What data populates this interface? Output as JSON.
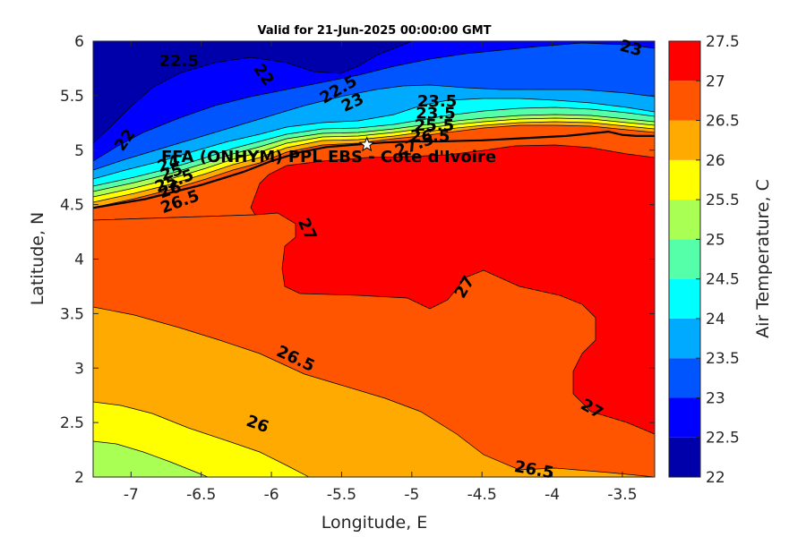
{
  "chart_data": {
    "type": "heatmap",
    "subtype": "filled-contour",
    "title": "Valid for 21-Jun-2025 00:00:00 GMT",
    "xlabel": "Longitude, E",
    "ylabel": "Latitude, N",
    "xlim": [
      -7.27,
      -3.27
    ],
    "ylim": [
      2,
      6
    ],
    "xticks": [
      -7,
      -6.5,
      -6,
      -5.5,
      -5,
      -4.5,
      -4,
      -3.5
    ],
    "yticks": [
      2,
      2.5,
      3,
      3.5,
      4,
      4.5,
      5,
      5.5,
      6
    ],
    "grid": false,
    "colorbar": {
      "label": "Air Temperature, C",
      "levels": [
        22,
        22.5,
        23,
        23.5,
        24,
        24.5,
        25,
        25.5,
        26,
        26.5,
        27,
        27.5
      ],
      "colors": [
        "#0000aa",
        "#0000ff",
        "#0055ff",
        "#00aaff",
        "#00ffff",
        "#55ffaa",
        "#aaff55",
        "#ffff00",
        "#ffaa00",
        "#ff5500",
        "#ff0000",
        "#aa0000"
      ],
      "tick_labels": [
        "22",
        "22.5",
        "23",
        "23.5",
        "24",
        "24.5",
        "25",
        "25.5",
        "26",
        "26.5",
        "27",
        "27.5"
      ]
    },
    "contour_labels": [
      {
        "text": "22.5",
        "x": -6.66,
        "y": 5.81,
        "rotate": 0
      },
      {
        "text": "22",
        "x": -6.06,
        "y": 5.69,
        "rotate": 55
      },
      {
        "text": "22",
        "x": -7.04,
        "y": 5.09,
        "rotate": -55
      },
      {
        "text": "22.5",
        "x": -5.52,
        "y": 5.55,
        "rotate": -30
      },
      {
        "text": "23",
        "x": -5.42,
        "y": 5.43,
        "rotate": -25
      },
      {
        "text": "23",
        "x": -3.44,
        "y": 5.93,
        "rotate": 15
      },
      {
        "text": "23.5",
        "x": -4.82,
        "y": 5.44,
        "rotate": 0
      },
      {
        "text": "23.5",
        "x": -4.83,
        "y": 5.33,
        "rotate": 0
      },
      {
        "text": "25.5",
        "x": -4.84,
        "y": 5.22,
        "rotate": 0
      },
      {
        "text": "26.5",
        "x": -4.87,
        "y": 5.12,
        "rotate": 0
      },
      {
        "text": "27.5",
        "x": -4.98,
        "y": 5.04,
        "rotate": -20
      },
      {
        "text": "24",
        "x": -6.73,
        "y": 4.87,
        "rotate": -20
      },
      {
        "text": "25",
        "x": -6.71,
        "y": 4.79,
        "rotate": -20
      },
      {
        "text": "25.5",
        "x": -6.69,
        "y": 4.71,
        "rotate": -20
      },
      {
        "text": "26",
        "x": -6.72,
        "y": 4.63,
        "rotate": -20
      },
      {
        "text": "26.5",
        "x": -6.65,
        "y": 4.52,
        "rotate": -20
      },
      {
        "text": "27",
        "x": -5.75,
        "y": 4.27,
        "rotate": 65
      },
      {
        "text": "27",
        "x": -4.62,
        "y": 3.74,
        "rotate": -60
      },
      {
        "text": "27",
        "x": -3.72,
        "y": 2.62,
        "rotate": 30
      },
      {
        "text": "26.5",
        "x": -5.83,
        "y": 3.08,
        "rotate": 25
      },
      {
        "text": "26",
        "x": -6.1,
        "y": 2.48,
        "rotate": 20
      },
      {
        "text": "26.5",
        "x": -4.13,
        "y": 2.06,
        "rotate": 10
      }
    ],
    "annotation": {
      "text": "FFA (ONHYM) PPL EBS - Cote d'Ivoire",
      "marker": "white-star",
      "marker_x": -5.32,
      "marker_y": 5.05
    },
    "pipeline_track": {
      "x": [
        -7.27,
        -6.9,
        -6.5,
        -6.2,
        -6.0,
        -5.8,
        -5.6,
        -5.4,
        -5.2,
        -5.0,
        -4.8,
        -4.5,
        -4.2,
        -3.9,
        -3.75,
        -3.6,
        -3.5,
        -3.4,
        -3.27
      ],
      "y": [
        4.47,
        4.55,
        4.68,
        4.8,
        4.9,
        4.98,
        5.03,
        5.05,
        5.07,
        5.08,
        5.08,
        5.09,
        5.11,
        5.13,
        5.15,
        5.17,
        5.14,
        5.13,
        5.13
      ]
    }
  }
}
